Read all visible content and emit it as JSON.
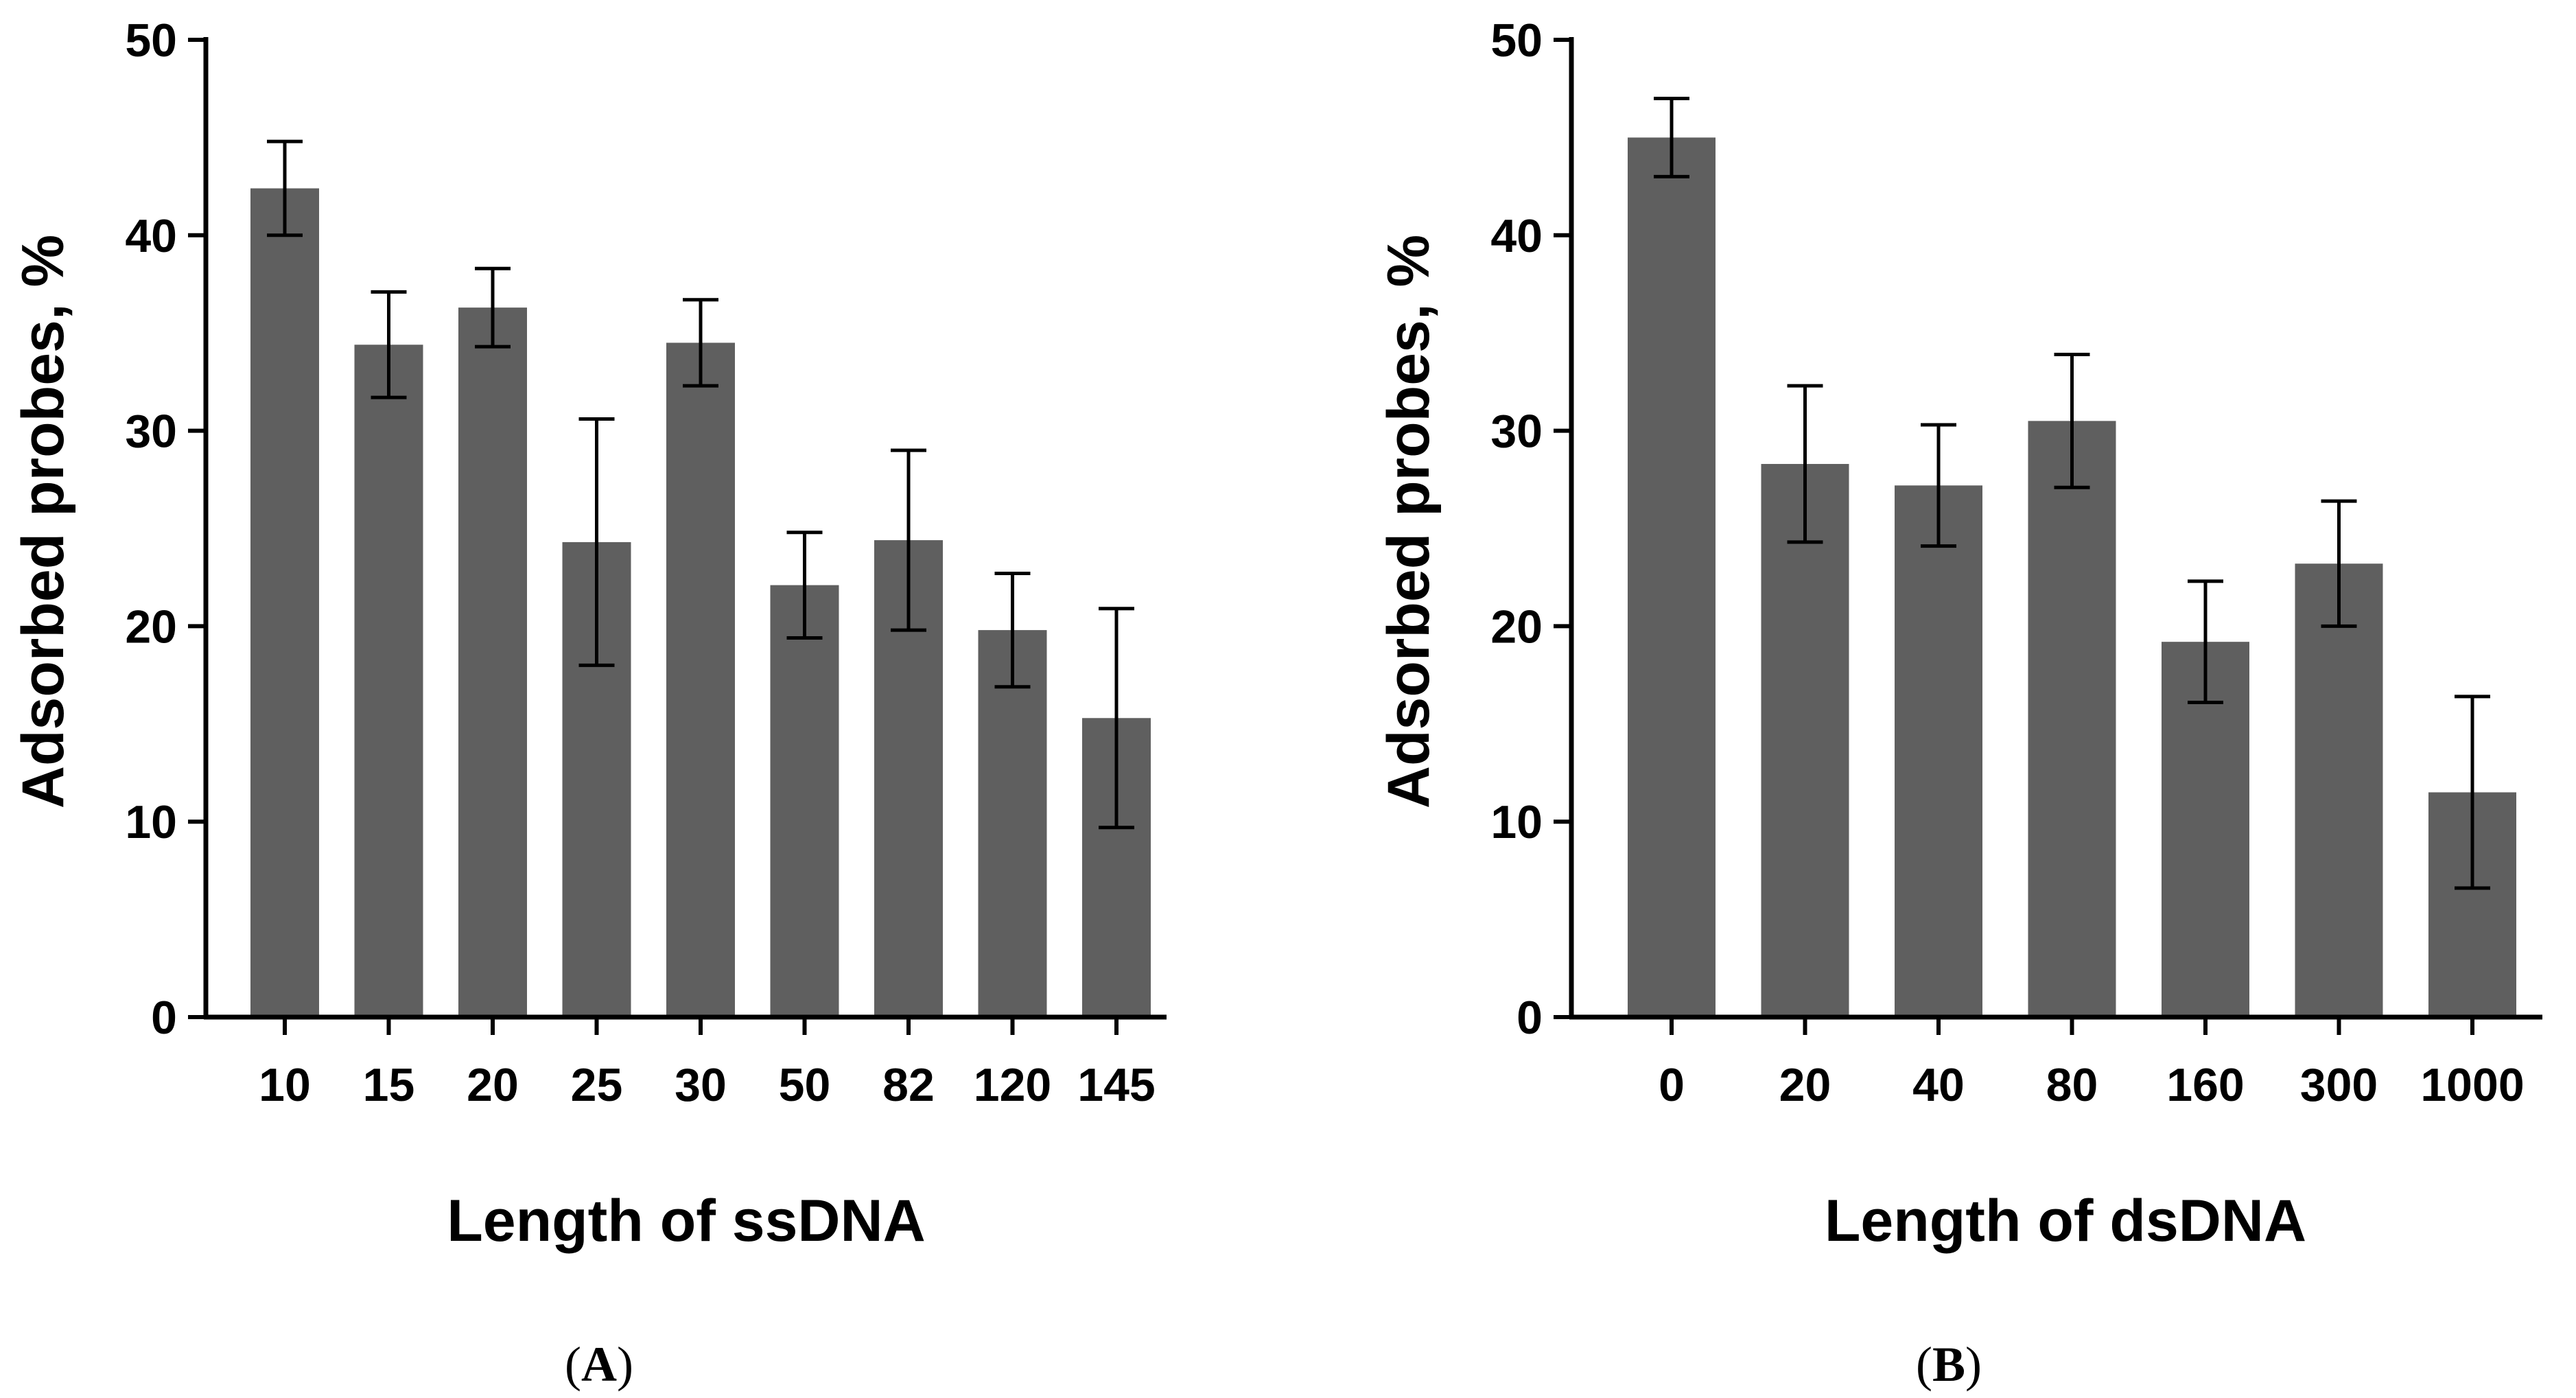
{
  "chart_data": [
    {
      "type": "bar",
      "panel": "A",
      "title": "",
      "xlabel": "Length of ssDNA",
      "ylabel": "Adsorbed probes, %",
      "ylim": [
        0,
        50
      ],
      "yticks": [
        "0",
        "10",
        "20",
        "30",
        "40",
        "50"
      ],
      "categories": [
        "10",
        "15",
        "20",
        "25",
        "30",
        "50",
        "82",
        "120",
        "145"
      ],
      "values": [
        42.4,
        34.4,
        36.3,
        24.3,
        34.5,
        22.1,
        24.4,
        19.8,
        15.3
      ],
      "errors": [
        2.4,
        2.7,
        2.0,
        6.3,
        2.2,
        2.7,
        4.6,
        2.9,
        5.6
      ],
      "bar_color": "#5f5f5f",
      "grid": false
    },
    {
      "type": "bar",
      "panel": "B",
      "title": "",
      "xlabel": "Length of dsDNA",
      "ylabel": "Adsorbed probes, %",
      "ylim": [
        0,
        50
      ],
      "yticks": [
        "0",
        "10",
        "20",
        "30",
        "40",
        "50"
      ],
      "categories": [
        "0",
        "20",
        "40",
        "80",
        "160",
        "300",
        "1000"
      ],
      "values": [
        45.0,
        28.3,
        27.2,
        30.5,
        19.2,
        23.2,
        11.5
      ],
      "errors": [
        2.0,
        4.0,
        3.1,
        3.4,
        3.1,
        3.2,
        4.9
      ],
      "bar_color": "#5f5f5f",
      "grid": false
    }
  ],
  "panel_labels": {
    "A": {
      "open": "(",
      "letter": "A",
      "close": ")"
    },
    "B": {
      "open": "(",
      "letter": "B",
      "close": ")"
    }
  }
}
